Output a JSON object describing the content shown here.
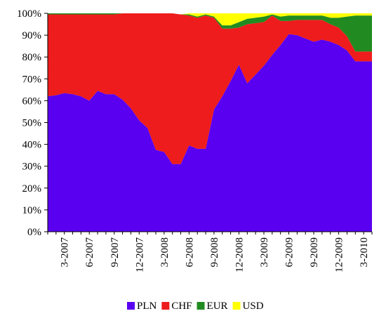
{
  "chart_data": {
    "type": "area",
    "stacked": true,
    "percent": true,
    "title": "",
    "xlabel": "",
    "ylabel": "",
    "ylim": [
      0,
      100
    ],
    "yticks": [
      "0%",
      "10%",
      "20%",
      "30%",
      "40%",
      "50%",
      "60%",
      "70%",
      "80%",
      "90%",
      "100%"
    ],
    "xticks": [
      "3-2007",
      "6-2007",
      "9-2007",
      "12-2007",
      "3-2008",
      "6-2008",
      "9-2008",
      "12-2008",
      "3-2009",
      "6-2009",
      "9-2009",
      "12-2009",
      "3-2010"
    ],
    "legend_position": "bottom",
    "x": [
      "1-2007",
      "2-2007",
      "3-2007",
      "4-2007",
      "5-2007",
      "6-2007",
      "7-2007",
      "8-2007",
      "9-2007",
      "10-2007",
      "11-2007",
      "12-2007",
      "1-2008",
      "2-2008",
      "3-2008",
      "4-2008",
      "5-2008",
      "6-2008",
      "7-2008",
      "8-2008",
      "9-2008",
      "10-2008",
      "11-2008",
      "12-2008",
      "1-2009",
      "2-2009",
      "3-2009",
      "4-2009",
      "5-2009",
      "6-2009",
      "7-2009",
      "8-2009",
      "9-2009",
      "10-2009",
      "11-2009",
      "12-2009",
      "1-2010",
      "2-2010",
      "3-2010",
      "4-2010"
    ],
    "series": [
      {
        "name": "PLN",
        "color": "#5a00f0",
        "values": [
          62,
          62.5,
          63.5,
          63,
          62,
          60,
          64.5,
          63,
          63,
          60.5,
          56.5,
          51,
          47.5,
          37.5,
          36.5,
          31,
          31,
          39.5,
          38,
          38,
          56,
          62,
          69,
          76.5,
          68,
          72,
          76,
          81,
          85.5,
          90.5,
          90,
          88.5,
          87,
          88,
          87,
          85.5,
          83,
          78,
          78,
          78
        ]
      },
      {
        "name": "CHF",
        "color": "#ee1c1c",
        "values": [
          37.5,
          37,
          36,
          36.5,
          37.5,
          39.5,
          35,
          36.5,
          36.5,
          39.5,
          43.5,
          49,
          52.5,
          62.5,
          63.5,
          69,
          68.5,
          59.5,
          60,
          61,
          42,
          31,
          24,
          17,
          27,
          23.5,
          20,
          18,
          11,
          6,
          7,
          8.5,
          10,
          9,
          8,
          8,
          6.5,
          4.5,
          4.5,
          4.5
        ]
      },
      {
        "name": "EUR",
        "color": "#218b21",
        "values": [
          0.5,
          0.5,
          0.5,
          0.5,
          0.5,
          0.5,
          0.5,
          0.5,
          0.5,
          0,
          0,
          0,
          0,
          0,
          0,
          0,
          0,
          0.5,
          0.5,
          0.5,
          0.5,
          1.5,
          1.5,
          2.5,
          2.5,
          2.5,
          2.5,
          0.5,
          2,
          2.5,
          2,
          2,
          2,
          2,
          3,
          4.5,
          9,
          16.5,
          16.5,
          16.5
        ]
      },
      {
        "name": "USD",
        "color": "#ffff00",
        "values": [
          0,
          0,
          0,
          0,
          0,
          0,
          0,
          0,
          0,
          0,
          0,
          0,
          0,
          0,
          0,
          0,
          0,
          0.5,
          1.5,
          0.5,
          1.5,
          5.5,
          5.5,
          4,
          2.5,
          2,
          1.5,
          0.5,
          1.5,
          1,
          1,
          1,
          1,
          1,
          2,
          2,
          1.5,
          1,
          1,
          1
        ]
      }
    ]
  }
}
